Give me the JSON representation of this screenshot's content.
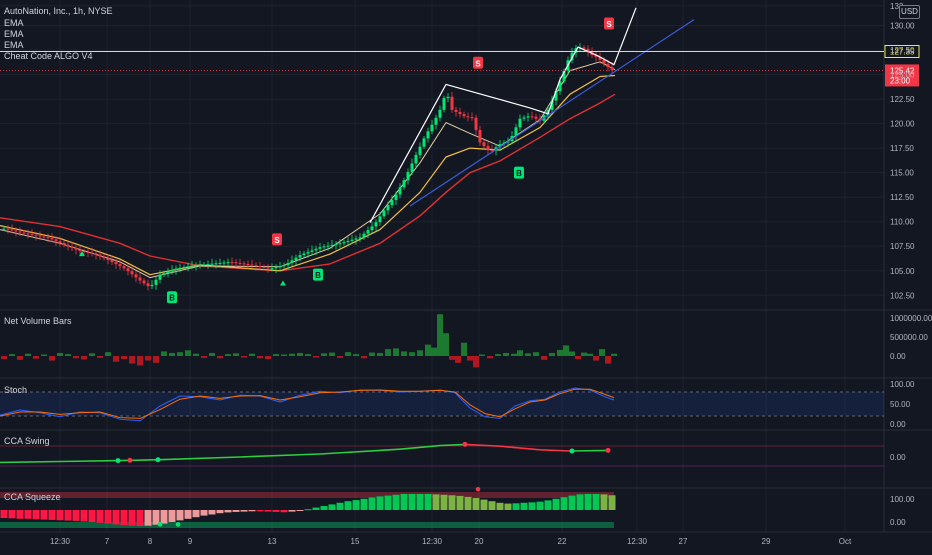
{
  "header": {
    "title": "AutoNation, Inc., 1h, NYSE",
    "indicators": [
      "EMA",
      "EMA",
      "EMA",
      "Cheat Code ALGO V4"
    ],
    "currency": "USD"
  },
  "panes": {
    "volume": "Net Volume Bars",
    "stoch": "Stoch",
    "cca_swing": "CCA Swing",
    "cca_squeeze": "CCA Squeeze"
  },
  "price_axis": {
    "ticks": [
      "132",
      "130.00",
      "127.50",
      "125.00",
      "122.50",
      "120.00",
      "117.50",
      "115.00",
      "112.50",
      "110.00",
      "107.50",
      "105.00",
      "102.50"
    ],
    "range": [
      101.0,
      132.6
    ]
  },
  "volume_axis": {
    "ticks": [
      "1000000.00",
      "500000.00",
      "0.00"
    ]
  },
  "stoch_axis": {
    "ticks": [
      "100.00",
      "50.00",
      "0.00"
    ]
  },
  "swing_axis": {
    "ticks": [
      "0.00"
    ]
  },
  "squeeze_axis": {
    "ticks": [
      "100.00",
      "0.00"
    ]
  },
  "time_axis": {
    "labels": [
      "12:30",
      "7",
      "8",
      "9",
      "13",
      "15",
      "12:30",
      "20",
      "22",
      "12:30",
      "27",
      "29",
      "Oct"
    ]
  },
  "price_markers": {
    "level_label": "127.35",
    "level_color": "#f5e642",
    "current_price": "125.42",
    "countdown": "23:00",
    "current_color": "#f23645"
  },
  "signal_letters": {
    "sell": "S",
    "buy": "B"
  },
  "colors": {
    "background": "#131722",
    "up": "#00e676",
    "down": "#f23645",
    "ema_fast": "#e0d0a0",
    "ema_mid": "#f0c040",
    "ema_slow": "#e03030",
    "trendline": "#3a5bd9",
    "zigzag": "#ffffff"
  },
  "chart_data": {
    "type": "candlestick",
    "symbol": "AutoNation, Inc., 1h, NYSE",
    "y_range": [
      101.0,
      132.6
    ],
    "price_path": [
      [
        5,
        109.3
      ],
      [
        20,
        108.9
      ],
      [
        35,
        108.6
      ],
      [
        50,
        108.3
      ],
      [
        65,
        107.6
      ],
      [
        80,
        107.0
      ],
      [
        95,
        106.7
      ],
      [
        110,
        106.0
      ],
      [
        125,
        105.2
      ],
      [
        140,
        104.0
      ],
      [
        150,
        103.3
      ],
      [
        160,
        104.6
      ],
      [
        175,
        105.2
      ],
      [
        190,
        105.5
      ],
      [
        210,
        105.7
      ],
      [
        230,
        105.9
      ],
      [
        250,
        105.6
      ],
      [
        270,
        105.2
      ],
      [
        285,
        105.6
      ],
      [
        300,
        106.6
      ],
      [
        320,
        107.4
      ],
      [
        340,
        107.8
      ],
      [
        360,
        108.4
      ],
      [
        375,
        109.8
      ],
      [
        385,
        111.3
      ],
      [
        395,
        112.6
      ],
      [
        405,
        114.4
      ],
      [
        415,
        116.6
      ],
      [
        425,
        118.7
      ],
      [
        435,
        120.4
      ],
      [
        442,
        121.8
      ],
      [
        446,
        123.4
      ],
      [
        452,
        121.4
      ],
      [
        465,
        120.7
      ],
      [
        472,
        120.6
      ],
      [
        480,
        118.1
      ],
      [
        490,
        117.1
      ],
      [
        500,
        117.9
      ],
      [
        510,
        118.3
      ],
      [
        520,
        120.5
      ],
      [
        530,
        120.8
      ],
      [
        540,
        120.3
      ],
      [
        548,
        121.4
      ],
      [
        556,
        123.3
      ],
      [
        563,
        125.1
      ],
      [
        570,
        127.0
      ],
      [
        576,
        127.7
      ],
      [
        582,
        127.8
      ],
      [
        590,
        127.1
      ],
      [
        598,
        126.7
      ],
      [
        604,
        126.1
      ],
      [
        610,
        125.6
      ],
      [
        614,
        125.4
      ]
    ],
    "ema_fast_path": [
      [
        0,
        109.2
      ],
      [
        60,
        107.8
      ],
      [
        120,
        105.9
      ],
      [
        150,
        104.3
      ],
      [
        200,
        105.5
      ],
      [
        280,
        105.4
      ],
      [
        330,
        107.3
      ],
      [
        380,
        110.8
      ],
      [
        420,
        116.0
      ],
      [
        446,
        120.1
      ],
      [
        470,
        119.0
      ],
      [
        500,
        117.7
      ],
      [
        540,
        120.4
      ],
      [
        570,
        125.4
      ],
      [
        600,
        126.3
      ],
      [
        615,
        125.5
      ]
    ],
    "ema_mid_path": [
      [
        0,
        109.6
      ],
      [
        60,
        108.3
      ],
      [
        120,
        106.2
      ],
      [
        150,
        104.6
      ],
      [
        200,
        105.6
      ],
      [
        280,
        105.0
      ],
      [
        330,
        106.7
      ],
      [
        380,
        109.2
      ],
      [
        420,
        113.0
      ],
      [
        446,
        116.6
      ],
      [
        470,
        117.5
      ],
      [
        500,
        117.3
      ],
      [
        540,
        119.6
      ],
      [
        570,
        123.0
      ],
      [
        600,
        124.8
      ],
      [
        615,
        124.9
      ]
    ],
    "ema_slow_path": [
      [
        0,
        110.4
      ],
      [
        60,
        109.5
      ],
      [
        120,
        107.8
      ],
      [
        150,
        106.5
      ],
      [
        200,
        105.5
      ],
      [
        280,
        105.0
      ],
      [
        330,
        105.7
      ],
      [
        380,
        107.8
      ],
      [
        420,
        110.6
      ],
      [
        446,
        113.0
      ],
      [
        470,
        115.0
      ],
      [
        500,
        116.2
      ],
      [
        540,
        118.6
      ],
      [
        570,
        120.5
      ],
      [
        600,
        122.1
      ],
      [
        615,
        123.0
      ]
    ],
    "zigzag_path": [
      [
        370,
        109.9
      ],
      [
        446,
        124.0
      ],
      [
        530,
        121.6
      ],
      [
        548,
        121.0
      ],
      [
        560,
        124.5
      ],
      [
        578,
        127.8
      ],
      [
        598,
        126.9
      ],
      [
        614,
        126.0
      ],
      [
        636,
        131.8
      ]
    ],
    "trendline": [
      [
        410,
        111.6
      ],
      [
        694,
        130.6
      ]
    ],
    "level": 127.35,
    "current_price": 125.42,
    "sell_signals": [
      [
        277,
        108.2
      ],
      [
        478,
        126.2
      ],
      [
        609,
        130.2
      ]
    ],
    "buy_signals": [
      [
        172,
        102.3
      ],
      [
        318,
        104.6
      ],
      [
        519,
        115.0
      ]
    ],
    "volume_bars": [
      [
        4,
        -0.08
      ],
      [
        12,
        0.05
      ],
      [
        20,
        -0.1
      ],
      [
        28,
        0.06
      ],
      [
        36,
        -0.07
      ],
      [
        44,
        0.04
      ],
      [
        52,
        -0.12
      ],
      [
        60,
        0.08
      ],
      [
        68,
        0.05
      ],
      [
        76,
        -0.06
      ],
      [
        84,
        -0.09
      ],
      [
        92,
        0.07
      ],
      [
        100,
        -0.05
      ],
      [
        108,
        0.1
      ],
      [
        116,
        -0.15
      ],
      [
        124,
        -0.08
      ],
      [
        132,
        -0.2
      ],
      [
        140,
        -0.25
      ],
      [
        148,
        -0.12
      ],
      [
        156,
        -0.18
      ],
      [
        164,
        0.12
      ],
      [
        172,
        0.08
      ],
      [
        180,
        0.1
      ],
      [
        188,
        0.15
      ],
      [
        196,
        0.06
      ],
      [
        204,
        -0.05
      ],
      [
        212,
        0.08
      ],
      [
        220,
        -0.06
      ],
      [
        228,
        0.05
      ],
      [
        236,
        0.07
      ],
      [
        244,
        -0.04
      ],
      [
        252,
        0.06
      ],
      [
        260,
        -0.06
      ],
      [
        268,
        -0.08
      ],
      [
        276,
        0.05
      ],
      [
        284,
        0.04
      ],
      [
        292,
        0.06
      ],
      [
        300,
        0.08
      ],
      [
        308,
        0.05
      ],
      [
        316,
        -0.04
      ],
      [
        324,
        0.07
      ],
      [
        332,
        0.09
      ],
      [
        340,
        -0.05
      ],
      [
        348,
        0.1
      ],
      [
        356,
        0.05
      ],
      [
        364,
        -0.06
      ],
      [
        372,
        0.09
      ],
      [
        380,
        0.08
      ],
      [
        388,
        0.18
      ],
      [
        396,
        0.2
      ],
      [
        404,
        0.12
      ],
      [
        412,
        0.1
      ],
      [
        420,
        0.15
      ],
      [
        428,
        0.3
      ],
      [
        434,
        0.22
      ],
      [
        440,
        1.1
      ],
      [
        446,
        0.6
      ],
      [
        452,
        -0.1
      ],
      [
        458,
        -0.18
      ],
      [
        464,
        0.35
      ],
      [
        470,
        -0.12
      ],
      [
        476,
        -0.3
      ],
      [
        482,
        0.04
      ],
      [
        490,
        -0.06
      ],
      [
        498,
        0.05
      ],
      [
        506,
        0.08
      ],
      [
        514,
        0.06
      ],
      [
        520,
        0.15
      ],
      [
        528,
        0.07
      ],
      [
        536,
        0.1
      ],
      [
        544,
        -0.1
      ],
      [
        552,
        0.08
      ],
      [
        560,
        0.16
      ],
      [
        566,
        0.28
      ],
      [
        572,
        0.12
      ],
      [
        578,
        -0.08
      ],
      [
        584,
        0.09
      ],
      [
        590,
        0.06
      ],
      [
        596,
        -0.12
      ],
      [
        602,
        0.18
      ],
      [
        608,
        -0.2
      ],
      [
        614,
        0.06
      ]
    ],
    "stoch_k": [
      [
        0,
        22
      ],
      [
        20,
        35
      ],
      [
        40,
        28
      ],
      [
        60,
        18
      ],
      [
        80,
        30
      ],
      [
        100,
        28
      ],
      [
        120,
        12
      ],
      [
        140,
        8
      ],
      [
        160,
        45
      ],
      [
        180,
        70
      ],
      [
        200,
        68
      ],
      [
        220,
        60
      ],
      [
        240,
        72
      ],
      [
        260,
        70
      ],
      [
        280,
        55
      ],
      [
        300,
        72
      ],
      [
        320,
        82
      ],
      [
        340,
        78
      ],
      [
        360,
        85
      ],
      [
        380,
        84
      ],
      [
        400,
        80
      ],
      [
        420,
        82
      ],
      [
        440,
        85
      ],
      [
        455,
        78
      ],
      [
        470,
        40
      ],
      [
        485,
        18
      ],
      [
        500,
        14
      ],
      [
        515,
        45
      ],
      [
        530,
        58
      ],
      [
        545,
        62
      ],
      [
        560,
        80
      ],
      [
        575,
        90
      ],
      [
        590,
        85
      ],
      [
        605,
        68
      ],
      [
        614,
        60
      ]
    ],
    "stoch_d": [
      [
        0,
        20
      ],
      [
        20,
        30
      ],
      [
        40,
        30
      ],
      [
        60,
        24
      ],
      [
        80,
        28
      ],
      [
        100,
        30
      ],
      [
        120,
        16
      ],
      [
        140,
        14
      ],
      [
        160,
        36
      ],
      [
        180,
        62
      ],
      [
        200,
        70
      ],
      [
        220,
        64
      ],
      [
        240,
        70
      ],
      [
        260,
        71
      ],
      [
        280,
        60
      ],
      [
        300,
        68
      ],
      [
        320,
        78
      ],
      [
        340,
        80
      ],
      [
        360,
        84
      ],
      [
        380,
        85
      ],
      [
        400,
        82
      ],
      [
        420,
        82
      ],
      [
        440,
        84
      ],
      [
        455,
        80
      ],
      [
        470,
        48
      ],
      [
        485,
        26
      ],
      [
        500,
        18
      ],
      [
        515,
        38
      ],
      [
        530,
        55
      ],
      [
        545,
        60
      ],
      [
        560,
        76
      ],
      [
        575,
        87
      ],
      [
        590,
        87
      ],
      [
        605,
        74
      ],
      [
        614,
        66
      ]
    ],
    "swing_curve": [
      [
        0,
        -0.9
      ],
      [
        60,
        -0.75
      ],
      [
        120,
        -0.6
      ],
      [
        160,
        -0.45
      ],
      [
        240,
        0.0
      ],
      [
        320,
        0.5
      ],
      [
        400,
        1.3
      ],
      [
        440,
        1.9
      ],
      [
        465,
        2.1
      ],
      [
        500,
        1.8
      ],
      [
        540,
        1.2
      ],
      [
        570,
        1.0
      ],
      [
        610,
        1.1
      ]
    ],
    "swing_dots": [
      [
        118,
        -0.6,
        "up"
      ],
      [
        130,
        -0.55,
        "down"
      ],
      [
        158,
        -0.45,
        "up"
      ],
      [
        465,
        2.1,
        "down"
      ],
      [
        572,
        1.0,
        "up"
      ],
      [
        608,
        1.1,
        "down"
      ]
    ],
    "squeeze_hist": [
      [
        4,
        -0.5
      ],
      [
        12,
        -0.52
      ],
      [
        20,
        -0.55
      ],
      [
        28,
        -0.55
      ],
      [
        36,
        -0.58
      ],
      [
        44,
        -0.6
      ],
      [
        52,
        -0.62
      ],
      [
        60,
        -0.64
      ],
      [
        68,
        -0.66
      ],
      [
        76,
        -0.68
      ],
      [
        84,
        -0.72
      ],
      [
        92,
        -0.75
      ],
      [
        100,
        -0.8
      ],
      [
        108,
        -0.85
      ],
      [
        116,
        -0.9
      ],
      [
        124,
        -0.95
      ],
      [
        132,
        -0.98
      ],
      [
        140,
        -1.0
      ],
      [
        148,
        -0.98
      ],
      [
        156,
        -0.92
      ],
      [
        164,
        -0.85
      ],
      [
        172,
        -0.75
      ],
      [
        180,
        -0.65
      ],
      [
        188,
        -0.55
      ],
      [
        196,
        -0.45
      ],
      [
        204,
        -0.35
      ],
      [
        212,
        -0.28
      ],
      [
        220,
        -0.2
      ],
      [
        228,
        -0.15
      ],
      [
        236,
        -0.12
      ],
      [
        244,
        -0.1
      ],
      [
        252,
        -0.08
      ],
      [
        260,
        -0.08
      ],
      [
        268,
        -0.1
      ],
      [
        276,
        -0.12
      ],
      [
        284,
        -0.14
      ],
      [
        292,
        -0.1
      ],
      [
        300,
        -0.05
      ],
      [
        308,
        0.05
      ],
      [
        316,
        0.15
      ],
      [
        324,
        0.25
      ],
      [
        332,
        0.35
      ],
      [
        340,
        0.45
      ],
      [
        348,
        0.55
      ],
      [
        356,
        0.62
      ],
      [
        364,
        0.7
      ],
      [
        372,
        0.78
      ],
      [
        380,
        0.85
      ],
      [
        388,
        0.9
      ],
      [
        396,
        0.95
      ],
      [
        404,
        1.0
      ],
      [
        412,
        1.0
      ],
      [
        420,
        1.0
      ],
      [
        428,
        1.0
      ],
      [
        436,
        0.98
      ],
      [
        444,
        0.95
      ],
      [
        452,
        0.92
      ],
      [
        460,
        0.88
      ],
      [
        468,
        0.82
      ],
      [
        476,
        0.75
      ],
      [
        484,
        0.65
      ],
      [
        492,
        0.55
      ],
      [
        500,
        0.45
      ],
      [
        508,
        0.4
      ],
      [
        516,
        0.42
      ],
      [
        524,
        0.45
      ],
      [
        532,
        0.48
      ],
      [
        540,
        0.52
      ],
      [
        548,
        0.6
      ],
      [
        556,
        0.7
      ],
      [
        564,
        0.8
      ],
      [
        572,
        0.9
      ],
      [
        580,
        0.98
      ],
      [
        588,
        1.0
      ],
      [
        596,
        1.0
      ],
      [
        604,
        0.98
      ],
      [
        612,
        0.92
      ]
    ],
    "squeeze_dots": [
      [
        160,
        -0.9,
        "up"
      ],
      [
        178,
        -0.9,
        "up"
      ],
      [
        478,
        1.3,
        "down"
      ]
    ]
  }
}
